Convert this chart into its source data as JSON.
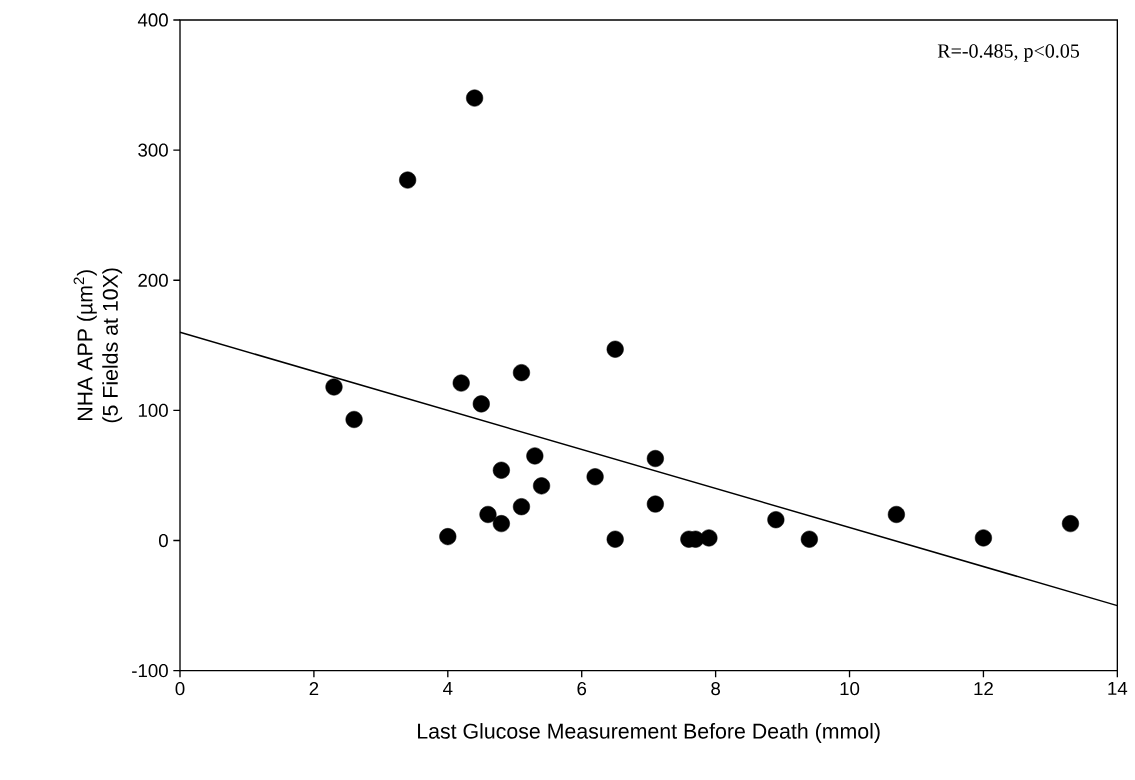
{
  "chart_data": {
    "type": "scatter",
    "xlabel": "Last Glucose Measurement Before Death (mmol)",
    "ylabel": "NHA APP (µm$^{2}$)\n(5 Fields at 10X)",
    "annotations": [
      "R=-0.485, p<0.05"
    ],
    "xlim": [
      0,
      14
    ],
    "ylim": [
      -100,
      400
    ],
    "xticks": [
      0,
      2,
      4,
      6,
      8,
      10,
      12,
      14
    ],
    "yticks": [
      -100,
      0,
      100,
      200,
      300,
      400
    ],
    "grid": false,
    "marker": "circle",
    "series": [
      {
        "color": "#000000",
        "x": [
          2.3,
          2.6,
          3.4,
          4.4,
          4.0,
          4.2,
          4.5,
          4.6,
          4.8,
          4.8,
          5.1,
          5.1,
          5.3,
          5.4,
          6.2,
          6.5,
          6.5,
          7.1,
          7.1,
          7.6,
          7.7,
          7.9,
          8.9,
          9.4,
          10.7,
          12.0,
          13.3
        ],
        "values": [
          118,
          93,
          277,
          340,
          3,
          121,
          105,
          20,
          54,
          13,
          129,
          26,
          65,
          42,
          49,
          147,
          1,
          63,
          28,
          1,
          1,
          2,
          16,
          1,
          20,
          2,
          13
        ]
      },
      {
        "type": "line",
        "color": "#000000",
        "marker": "none",
        "line_style": "solid",
        "x": [
          0,
          14
        ],
        "values": [
          160,
          -50
        ]
      }
    ]
  }
}
